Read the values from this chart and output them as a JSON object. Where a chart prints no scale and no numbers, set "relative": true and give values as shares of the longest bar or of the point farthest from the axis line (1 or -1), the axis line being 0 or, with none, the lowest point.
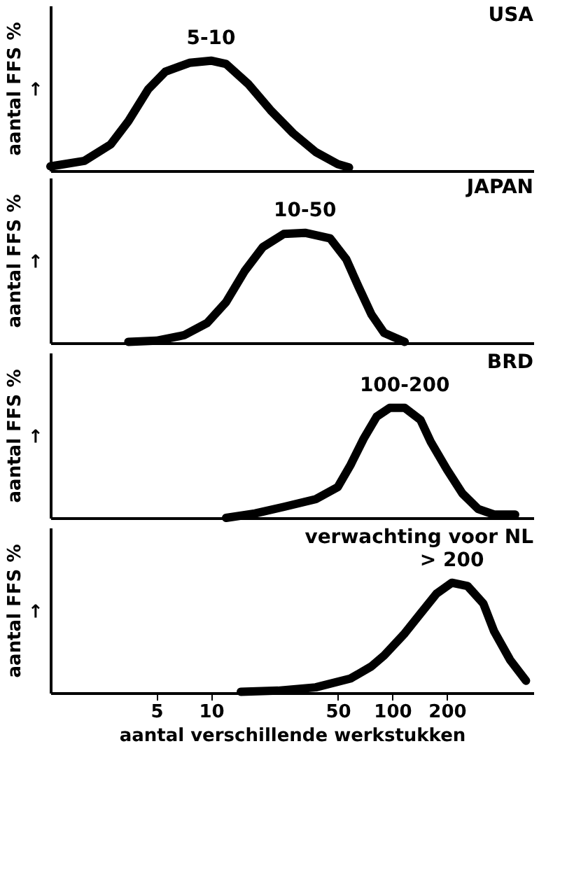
{
  "chart_data": [
    {
      "type": "line",
      "title": "USA",
      "ylabel": "aantal FFS %\n→",
      "relative": true,
      "log": "x",
      "xlim": [
        1.3,
        600
      ],
      "tick_labels": false,
      "line_style": "solid",
      "series": [
        {
          "color": "#000000",
          "x": [
            1.3,
            2.0,
            2.8,
            3.5,
            4.5,
            5.6,
            7.6,
            10,
            12.1,
            16.0,
            21.3,
            28.4,
            37.8,
            50,
            57.7
          ],
          "values": [
            0.04,
            0.09,
            0.24,
            0.45,
            0.74,
            0.9,
            0.98,
            1,
            0.97,
            0.79,
            0.55,
            0.34,
            0.17,
            0.06,
            0.03
          ]
        }
      ],
      "annotations": [
        {
          "text": "5-10",
          "x": 10,
          "y": 1
        }
      ]
    },
    {
      "type": "line",
      "title": "JAPAN",
      "ylabel": "aantal FFS %\n→",
      "relative": true,
      "log": "x",
      "xlim": [
        1.3,
        600
      ],
      "tick_labels": false,
      "line_style": "solid",
      "series": [
        {
          "color": "#000000",
          "x": [
            3.5,
            5,
            7.1,
            9.5,
            12.1,
            15.3,
            19.3,
            25.2,
            33.0,
            45.4,
            55.7,
            65.1,
            76.6,
            90.2,
            117
          ],
          "values": [
            0.01,
            0.02,
            0.07,
            0.18,
            0.37,
            0.65,
            0.87,
            0.99,
            1,
            0.95,
            0.76,
            0.51,
            0.26,
            0.09,
            0.01
          ]
        }
      ],
      "annotations": [
        {
          "text": "10-50",
          "x": 33.0,
          "y": 1
        }
      ]
    },
    {
      "type": "line",
      "title": "BRD",
      "ylabel": "aantal FFS %\n→",
      "relative": true,
      "log": "x",
      "xlim": [
        1.3,
        600
      ],
      "tick_labels": false,
      "line_style": "solid",
      "series": [
        {
          "color": "#000000",
          "x": [
            12.1,
            17.5,
            25.2,
            37.8,
            50,
            58.8,
            69.5,
            82.0,
            96.8,
            117,
            143,
            163,
            200,
            244,
            298,
            364,
            476
          ],
          "values": [
            0,
            0.04,
            0.1,
            0.17,
            0.28,
            0.48,
            0.72,
            0.92,
            1,
            1,
            0.89,
            0.69,
            0.44,
            0.22,
            0.08,
            0.03,
            0.03
          ]
        }
      ],
      "annotations": [
        {
          "text": "100-200",
          "x": 117,
          "y": 1
        }
      ]
    },
    {
      "type": "line",
      "title": "verwachting voor NL",
      "ylabel": "aantal FFS %\n→",
      "xlabel": "aantal verschillende werkstukken",
      "relative": true,
      "log": "x",
      "xlim": [
        1.3,
        600
      ],
      "xticks": [
        5,
        10,
        50,
        100,
        200
      ],
      "tick_labels": "x",
      "line_style": "solid",
      "series": [
        {
          "color": "#000000",
          "x": [
            14.6,
            23.4,
            37.8,
            58.8,
            76.6,
            90.2,
            117,
            143,
            175,
            213,
            260,
            318,
            364,
            446,
            546
          ],
          "values": [
            0.01,
            0.02,
            0.05,
            0.13,
            0.24,
            0.34,
            0.54,
            0.72,
            0.9,
            1,
            0.97,
            0.81,
            0.56,
            0.3,
            0.11
          ]
        }
      ],
      "annotations": [
        {
          "text": "> 200",
          "x": 213,
          "y": 1
        }
      ]
    }
  ]
}
